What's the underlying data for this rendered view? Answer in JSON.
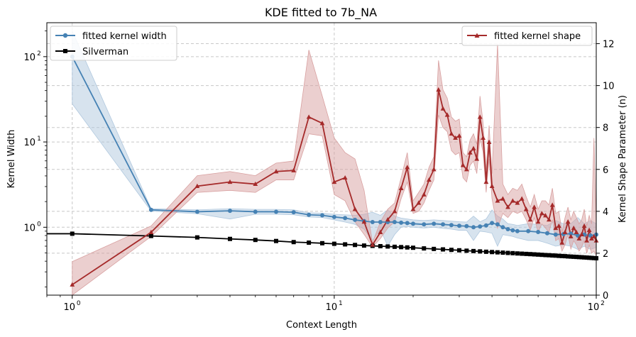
{
  "chart_data": {
    "type": "line",
    "title": "KDE fitted to 7b_NA",
    "xlabel": "Context Length",
    "ylabel_left": "Kernel Width",
    "ylabel_right": "Kernel Shape Parameter (n)",
    "x_scale": "log",
    "y_left_scale": "log",
    "xlim": [
      0.8,
      100
    ],
    "ylim_left": [
      0.16,
      250
    ],
    "ylim_right": [
      0,
      13
    ],
    "grid": true,
    "x_ticks": [
      {
        "v": 1,
        "base": "10",
        "exp": "0"
      },
      {
        "v": 10,
        "base": "10",
        "exp": "1"
      },
      {
        "v": 100,
        "base": "10",
        "exp": "2"
      }
    ],
    "y_left_ticks": [
      {
        "v": 1,
        "base": "10",
        "exp": "0"
      },
      {
        "v": 10,
        "base": "10",
        "exp": "1"
      },
      {
        "v": 100,
        "base": "10",
        "exp": "2"
      }
    ],
    "y_right_ticks": [
      0,
      2,
      4,
      6,
      8,
      10,
      12
    ],
    "legend_left": {
      "placement": "upper-left",
      "entries": [
        "fitted kernel width",
        "Silverman"
      ]
    },
    "legend_right": {
      "placement": "upper-right",
      "entries": [
        "fitted kernel shape"
      ]
    },
    "colors": {
      "width": "#4682b4",
      "silverman": "#000000",
      "shape": "#a52a2a",
      "width_band": "#b0c8de",
      "shape_band": "#d8a0a0"
    },
    "series": {
      "width": {
        "name": "fitted kernel width",
        "axis": "left",
        "x": [
          1,
          2,
          3,
          4,
          5,
          6,
          7,
          8,
          9,
          10,
          11,
          12,
          13,
          14,
          15,
          16,
          17,
          18,
          19,
          20,
          22,
          24,
          26,
          28,
          30,
          32,
          34,
          36,
          38,
          40,
          42,
          44,
          46,
          48,
          50,
          55,
          60,
          65,
          70,
          75,
          80,
          85,
          90,
          95,
          100
        ],
        "y": [
          100,
          1.6,
          1.52,
          1.56,
          1.52,
          1.52,
          1.5,
          1.4,
          1.38,
          1.32,
          1.28,
          1.22,
          1.18,
          1.15,
          1.15,
          1.15,
          1.15,
          1.13,
          1.12,
          1.1,
          1.08,
          1.1,
          1.08,
          1.06,
          1.04,
          1.03,
          1.0,
          1.02,
          1.05,
          1.12,
          1.08,
          1.0,
          0.95,
          0.92,
          0.9,
          0.9,
          0.88,
          0.85,
          0.82,
          0.83,
          0.84,
          0.8,
          0.82,
          0.8,
          0.82
        ],
        "lower": [
          28,
          1.55,
          1.44,
          1.25,
          1.42,
          1.42,
          1.4,
          1.32,
          1.3,
          1.22,
          1.15,
          1.08,
          0.95,
          0.7,
          0.95,
          0.6,
          0.82,
          1.0,
          1.02,
          1.0,
          0.98,
          1.0,
          0.97,
          0.95,
          0.92,
          0.92,
          0.7,
          0.9,
          0.88,
          0.85,
          0.6,
          0.82,
          0.8,
          0.78,
          0.75,
          0.7,
          0.7,
          0.65,
          0.6,
          0.62,
          0.6,
          0.55,
          0.6,
          0.55,
          0.58
        ],
        "upper": [
          200,
          1.65,
          1.6,
          1.65,
          1.62,
          1.62,
          1.6,
          1.48,
          1.46,
          1.42,
          1.4,
          1.38,
          1.42,
          1.5,
          1.38,
          1.6,
          1.35,
          1.28,
          1.25,
          1.22,
          1.2,
          1.22,
          1.2,
          1.18,
          1.16,
          1.15,
          1.35,
          1.16,
          1.25,
          1.6,
          1.35,
          1.25,
          1.1,
          1.08,
          1.05,
          1.1,
          1.08,
          1.05,
          1.2,
          1.1,
          1.1,
          1.3,
          1.1,
          1.2,
          1.1
        ]
      },
      "silverman": {
        "name": "Silverman",
        "axis": "left",
        "x": [
          0.8,
          1,
          2,
          3,
          4,
          5,
          6,
          7,
          8,
          9,
          10,
          11,
          12,
          13,
          14,
          15,
          16,
          17,
          18,
          19,
          20,
          22,
          24,
          26,
          28,
          30,
          32,
          34,
          36,
          38,
          40,
          42,
          44,
          46,
          48,
          50,
          52,
          54,
          56,
          58,
          60,
          62,
          64,
          66,
          68,
          70,
          72,
          74,
          76,
          78,
          80,
          82,
          84,
          86,
          88,
          90,
          92,
          94,
          96,
          98,
          100
        ],
        "y": [
          0.84,
          0.84,
          0.79,
          0.76,
          0.73,
          0.71,
          0.69,
          0.67,
          0.66,
          0.65,
          0.64,
          0.63,
          0.62,
          0.61,
          0.605,
          0.6,
          0.595,
          0.59,
          0.585,
          0.58,
          0.575,
          0.565,
          0.557,
          0.55,
          0.543,
          0.537,
          0.531,
          0.526,
          0.521,
          0.516,
          0.512,
          0.508,
          0.504,
          0.5,
          0.497,
          0.493,
          0.49,
          0.487,
          0.484,
          0.481,
          0.478,
          0.475,
          0.472,
          0.47,
          0.467,
          0.465,
          0.462,
          0.46,
          0.458,
          0.455,
          0.453,
          0.451,
          0.449,
          0.447,
          0.445,
          0.443,
          0.441,
          0.439,
          0.437,
          0.435,
          0.433
        ]
      },
      "shape": {
        "name": "fitted kernel shape",
        "axis": "right",
        "x": [
          1,
          2,
          3,
          4,
          5,
          6,
          7,
          8,
          9,
          10,
          11,
          12,
          13,
          14,
          15,
          16,
          17,
          18,
          19,
          20,
          21,
          22,
          23,
          24,
          25,
          26,
          27,
          28,
          29,
          30,
          31,
          32,
          33,
          34,
          35,
          36,
          37,
          38,
          39,
          40,
          42,
          44,
          46,
          48,
          50,
          52,
          54,
          56,
          58,
          60,
          62,
          64,
          66,
          68,
          70,
          72,
          74,
          76,
          78,
          80,
          82,
          84,
          86,
          88,
          90,
          92,
          94,
          96,
          98,
          100
        ],
        "y": [
          0.5,
          3.0,
          5.2,
          5.4,
          5.3,
          5.9,
          5.95,
          8.5,
          8.2,
          5.4,
          5.6,
          4.1,
          3.5,
          2.4,
          3.0,
          3.6,
          4.0,
          5.1,
          6.1,
          4.1,
          4.4,
          4.8,
          5.5,
          6.0,
          9.8,
          8.9,
          8.6,
          7.7,
          7.5,
          7.6,
          6.2,
          6.0,
          6.8,
          7.0,
          6.5,
          8.5,
          7.5,
          5.4,
          7.3,
          5.2,
          4.5,
          4.6,
          4.2,
          4.5,
          4.4,
          4.6,
          4.1,
          3.6,
          4.2,
          3.5,
          3.9,
          3.8,
          3.6,
          4.3,
          3.2,
          3.3,
          2.5,
          3.0,
          3.5,
          2.8,
          3.2,
          3.0,
          2.7,
          2.9,
          3.3,
          2.6,
          3.1,
          2.7,
          2.8,
          2.6
        ],
        "lower": [
          0.0,
          2.8,
          4.9,
          5.0,
          4.9,
          5.5,
          5.5,
          7.7,
          7.6,
          4.8,
          4.5,
          3.5,
          2.9,
          2.3,
          2.7,
          3.2,
          3.5,
          4.6,
          5.4,
          3.9,
          4.0,
          4.4,
          5.0,
          5.5,
          8.6,
          8.0,
          7.8,
          6.9,
          6.7,
          6.8,
          5.6,
          5.4,
          6.2,
          6.4,
          5.8,
          7.5,
          6.8,
          4.9,
          6.5,
          4.6,
          3.2,
          3.9,
          3.7,
          4.0,
          3.9,
          4.0,
          3.6,
          3.1,
          3.7,
          3.0,
          3.4,
          3.2,
          3.0,
          3.6,
          2.6,
          2.7,
          2.1,
          2.4,
          2.9,
          2.2,
          2.6,
          2.4,
          2.1,
          2.3,
          2.6,
          2.0,
          2.4,
          2.0,
          2.1,
          1.9
        ],
        "upper": [
          1.6,
          3.3,
          5.7,
          5.9,
          5.7,
          6.3,
          6.4,
          11.7,
          9.5,
          7.5,
          6.8,
          6.5,
          5.0,
          2.5,
          3.5,
          4.1,
          4.4,
          5.6,
          6.8,
          4.5,
          4.9,
          5.3,
          6.1,
          6.6,
          11.2,
          9.8,
          9.4,
          8.5,
          8.3,
          8.4,
          6.8,
          6.6,
          7.4,
          7.7,
          7.2,
          9.5,
          8.2,
          6.0,
          8.1,
          5.8,
          12.0,
          5.3,
          4.8,
          5.1,
          5.0,
          5.3,
          4.7,
          4.2,
          4.8,
          4.1,
          4.5,
          4.5,
          4.3,
          5.1,
          3.9,
          4.0,
          3.0,
          3.7,
          4.2,
          3.6,
          4.0,
          3.7,
          3.4,
          3.6,
          4.1,
          3.3,
          3.8,
          3.4,
          7.5,
          3.4
        ]
      }
    }
  }
}
